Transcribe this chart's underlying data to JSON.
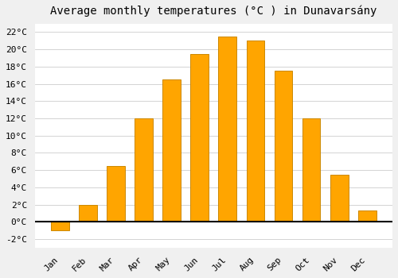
{
  "title": "Average monthly temperatures (°C ) in Dunavarsány",
  "months": [
    "Jan",
    "Feb",
    "Mar",
    "Apr",
    "May",
    "Jun",
    "Jul",
    "Aug",
    "Sep",
    "Oct",
    "Nov",
    "Dec"
  ],
  "values": [
    -1.0,
    2.0,
    6.5,
    12.0,
    16.5,
    19.5,
    21.5,
    21.0,
    17.5,
    12.0,
    5.5,
    1.3
  ],
  "bar_color": "#FFA500",
  "bar_edge_color": "#CC8800",
  "background_color": "#F0F0F0",
  "plot_bg_color": "#FFFFFF",
  "grid_color": "#CCCCCC",
  "ylim": [
    -3,
    23
  ],
  "yticks": [
    -2,
    0,
    2,
    4,
    6,
    8,
    10,
    12,
    14,
    16,
    18,
    20,
    22
  ],
  "title_fontsize": 10,
  "tick_fontsize": 8,
  "font_family": "monospace"
}
